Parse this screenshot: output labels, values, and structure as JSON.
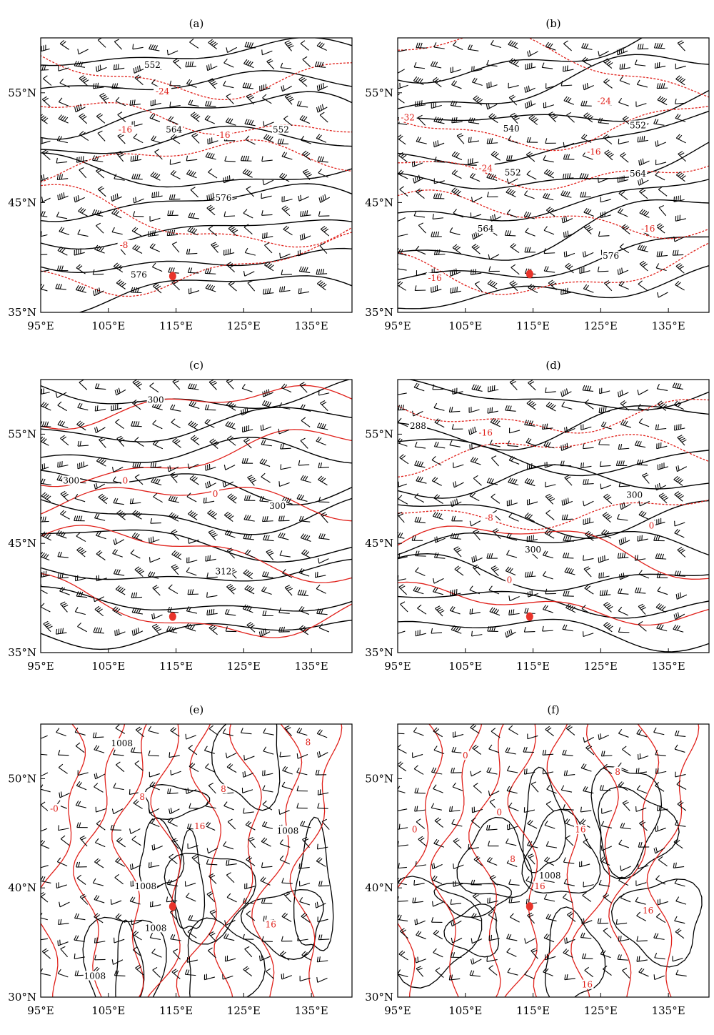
{
  "colors": {
    "height_contour": "#000000",
    "temperature_contour": "#e0201a",
    "station_marker": "#e8332a",
    "wind_barb": "#000000",
    "frame": "#000000"
  },
  "panels": [
    {
      "id": "a",
      "label": "(a)",
      "lon_labels": [
        "95°E",
        "105°E",
        "115°E",
        "125°E",
        "135°E"
      ],
      "lat_labels": [
        "55°N",
        "45°N",
        "35°N"
      ],
      "lon_ticks": [
        95,
        105,
        115,
        125,
        135
      ],
      "lat_ticks": [
        55,
        45,
        35
      ],
      "lon_range": [
        95,
        141
      ],
      "lat_range": [
        35,
        60
      ],
      "station": {
        "lon": 114.5,
        "lat": 38.3
      },
      "height_labels": [
        {
          "text": "552",
          "lon": 111.5,
          "lat": 57.4
        },
        {
          "text": "564",
          "lon": 114.7,
          "lat": 51.5
        },
        {
          "text": "552",
          "lon": 130.5,
          "lat": 51.5
        },
        {
          "text": "576",
          "lon": 122.0,
          "lat": 45.3
        },
        {
          "text": "576",
          "lon": 109.5,
          "lat": 38.3
        }
      ],
      "temp_labels": [
        {
          "text": "-24",
          "lon": 113.0,
          "lat": 55.0
        },
        {
          "text": "-16",
          "lon": 107.5,
          "lat": 51.5
        },
        {
          "text": "-16",
          "lon": 122.0,
          "lat": 51.0
        },
        {
          "text": "-8",
          "lon": 107.3,
          "lat": 41.0
        }
      ]
    },
    {
      "id": "b",
      "label": "(b)",
      "lon_labels": [
        "95°E",
        "105°E",
        "115°E",
        "125°E",
        "135°E"
      ],
      "lat_labels": [
        "55°N",
        "45°N",
        "35°N"
      ],
      "lon_ticks": [
        95,
        105,
        115,
        125,
        135
      ],
      "lat_ticks": [
        55,
        45,
        35
      ],
      "lon_range": [
        95,
        141
      ],
      "lat_range": [
        35,
        60
      ],
      "station": {
        "lon": 114.5,
        "lat": 38.5
      },
      "height_labels": [
        {
          "text": "540",
          "lon": 111.8,
          "lat": 51.6
        },
        {
          "text": "552",
          "lon": 130.5,
          "lat": 51.9
        },
        {
          "text": "552",
          "lon": 112.0,
          "lat": 47.6
        },
        {
          "text": "564",
          "lon": 130.5,
          "lat": 47.5
        },
        {
          "text": "564",
          "lon": 108.0,
          "lat": 42.5
        },
        {
          "text": "576",
          "lon": 126.5,
          "lat": 40.0
        }
      ],
      "temp_labels": [
        {
          "text": "-32",
          "lon": 96.5,
          "lat": 52.6
        },
        {
          "text": "-24",
          "lon": 125.5,
          "lat": 54.1
        },
        {
          "text": "-16",
          "lon": 124.0,
          "lat": 49.5
        },
        {
          "text": "-24",
          "lon": 108.0,
          "lat": 48.0
        },
        {
          "text": "-16",
          "lon": 132.0,
          "lat": 42.5
        },
        {
          "text": "-16",
          "lon": 100.5,
          "lat": 38.0
        }
      ]
    },
    {
      "id": "c",
      "label": "(c)",
      "lon_labels": [
        "95°E",
        "105°E",
        "115°E",
        "125°E",
        "135°E"
      ],
      "lat_labels": [
        "55°N",
        "45°N",
        "35°N"
      ],
      "lon_ticks": [
        95,
        105,
        115,
        125,
        135
      ],
      "lat_ticks": [
        55,
        45,
        35
      ],
      "lon_range": [
        95,
        141
      ],
      "lat_range": [
        35,
        60
      ],
      "station": {
        "lon": 114.5,
        "lat": 38.3
      },
      "height_labels": [
        {
          "text": "300",
          "lon": 112.0,
          "lat": 58.0
        },
        {
          "text": "300",
          "lon": 99.5,
          "lat": 50.6
        },
        {
          "text": "300",
          "lon": 130.0,
          "lat": 48.3
        },
        {
          "text": "312",
          "lon": 122.0,
          "lat": 42.3
        }
      ],
      "temp_labels": [
        {
          "text": "0",
          "lon": 107.5,
          "lat": 50.6
        },
        {
          "text": "0",
          "lon": 120.8,
          "lat": 49.4
        }
      ]
    },
    {
      "id": "d",
      "label": "(d)",
      "lon_labels": [
        "95°E",
        "105°E",
        "115°E",
        "125°E",
        "135°E"
      ],
      "lat_labels": [
        "55°N",
        "45°N",
        "35°N"
      ],
      "lon_ticks": [
        95,
        105,
        115,
        125,
        135
      ],
      "lat_ticks": [
        55,
        45,
        35
      ],
      "lon_range": [
        95,
        141
      ],
      "lat_range": [
        35,
        60
      ],
      "station": {
        "lon": 114.5,
        "lat": 38.3
      },
      "height_labels": [
        {
          "text": "288",
          "lon": 98.0,
          "lat": 55.6
        },
        {
          "text": "300",
          "lon": 130.0,
          "lat": 49.3
        },
        {
          "text": "300",
          "lon": 115.0,
          "lat": 44.3
        }
      ],
      "temp_labels": [
        {
          "text": "-16",
          "lon": 108.0,
          "lat": 55.0
        },
        {
          "text": "-8",
          "lon": 108.5,
          "lat": 47.2
        },
        {
          "text": "0",
          "lon": 132.5,
          "lat": 46.5
        },
        {
          "text": "0",
          "lon": 111.5,
          "lat": 41.5
        }
      ]
    },
    {
      "id": "e",
      "label": "(e)",
      "lon_labels": [
        "95°E",
        "105°E",
        "115°E",
        "125°E",
        "135°E"
      ],
      "lat_labels": [
        "50°N",
        "40°N",
        "30°N"
      ],
      "lon_ticks": [
        95,
        105,
        115,
        125,
        135
      ],
      "lat_ticks": [
        50,
        40,
        30
      ],
      "lon_range": [
        95,
        141
      ],
      "lat_range": [
        30,
        55
      ],
      "station": {
        "lon": 114.5,
        "lat": 38.3
      },
      "height_labels": [
        {
          "text": "1008",
          "lon": 107.0,
          "lat": 53.1
        },
        {
          "text": "1008",
          "lon": 131.5,
          "lat": 45.1
        },
        {
          "text": "1008",
          "lon": 110.5,
          "lat": 40.0
        },
        {
          "text": "1008",
          "lon": 112.0,
          "lat": 36.2
        },
        {
          "text": "1008",
          "lon": 103.0,
          "lat": 31.8
        }
      ],
      "temp_labels": [
        {
          "text": "8",
          "lon": 134.5,
          "lat": 53.2
        },
        {
          "text": "8",
          "lon": 122.0,
          "lat": 48.9
        },
        {
          "text": "8",
          "lon": 110.0,
          "lat": 48.2
        },
        {
          "text": "-0",
          "lon": 97.0,
          "lat": 47.1
        },
        {
          "text": "16",
          "lon": 118.5,
          "lat": 45.5
        },
        {
          "text": "16",
          "lon": 129.0,
          "lat": 36.5
        }
      ]
    },
    {
      "id": "f",
      "label": "(f)",
      "lon_labels": [
        "95°E",
        "105°E",
        "115°E",
        "125°E",
        "135°E"
      ],
      "lat_labels": [
        "50°N",
        "40°N",
        "30°N"
      ],
      "lon_ticks": [
        95,
        105,
        115,
        125,
        135
      ],
      "lat_ticks": [
        50,
        40,
        30
      ],
      "lon_range": [
        95,
        141
      ],
      "lat_range": [
        30,
        55
      ],
      "station": {
        "lon": 114.5,
        "lat": 38.3
      },
      "height_labels": [
        {
          "text": "1008",
          "lon": 117.5,
          "lat": 41.0
        }
      ],
      "temp_labels": [
        {
          "text": "0",
          "lon": 105.0,
          "lat": 52.0
        },
        {
          "text": "8",
          "lon": 127.5,
          "lat": 50.5
        },
        {
          "text": "0",
          "lon": 110.0,
          "lat": 46.8
        },
        {
          "text": "0",
          "lon": 97.5,
          "lat": 45.2
        },
        {
          "text": "16",
          "lon": 122.0,
          "lat": 45.2
        },
        {
          "text": "8",
          "lon": 112.0,
          "lat": 42.5
        },
        {
          "text": "16",
          "lon": 116.0,
          "lat": 40.0
        },
        {
          "text": "16",
          "lon": 132.0,
          "lat": 37.8
        },
        {
          "text": "16",
          "lon": 123.0,
          "lat": 31.0
        }
      ]
    }
  ]
}
